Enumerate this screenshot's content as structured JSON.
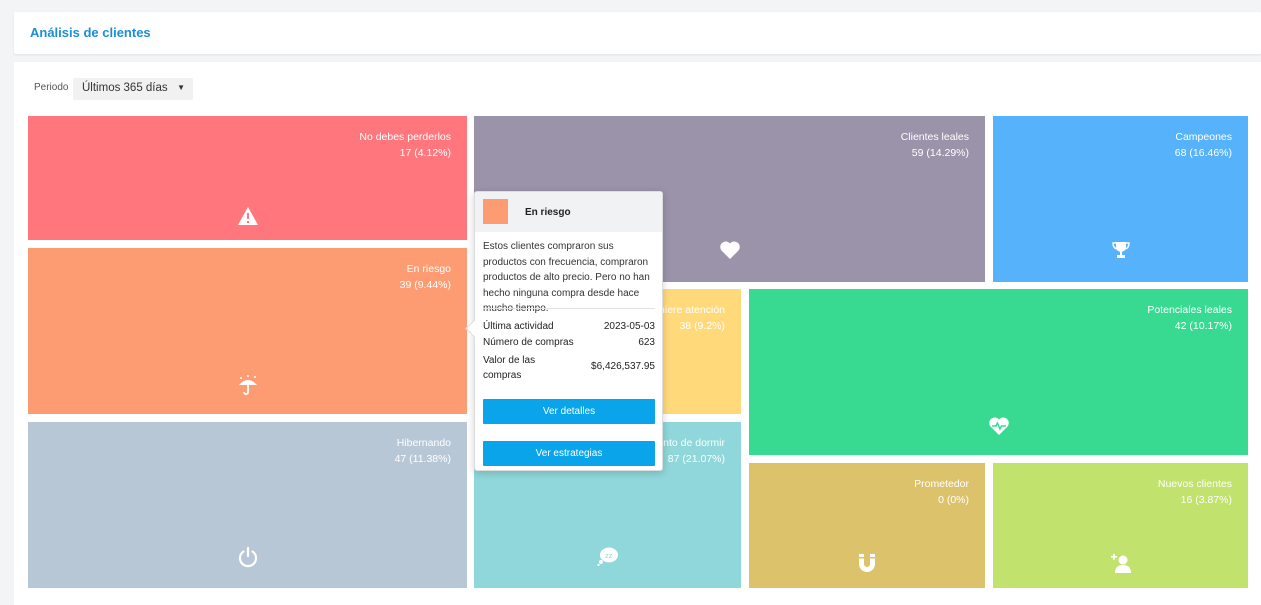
{
  "header": {
    "title": "Análisis de clientes"
  },
  "filter": {
    "label": "Periodo",
    "value": "Últimos 365 días"
  },
  "segments": {
    "no_debes_perderlos": {
      "name": "No debes perderlos",
      "value": "17 (4.12%)",
      "color": "#ff767d",
      "icon": "warning-icon"
    },
    "en_riesgo": {
      "name": "En riesgo",
      "value": "39 (9.44%)",
      "color": "#fd9c72",
      "icon": "umbrella-rain-icon"
    },
    "hibernando": {
      "name": "Hibernando",
      "value": "47 (11.38%)",
      "color": "#b8c7d6",
      "icon": "power-icon"
    },
    "clientes_leales": {
      "name": "Clientes leales",
      "value": "59 (14.29%)",
      "color": "#9b93a9",
      "icon": "heart-icon"
    },
    "campeones": {
      "name": "Campeones",
      "value": "68 (16.46%)",
      "color": "#55b2fb",
      "icon": "trophy-icon"
    },
    "requiere_atencion": {
      "name": "uiere atención",
      "value": "38 (9.2%)",
      "color": "#ffd97a",
      "icon": ""
    },
    "a_punto_de_dormir": {
      "name": "nto de dormir",
      "value": "87 (21.07%)",
      "color": "#8fd7da",
      "icon": "sleep-bubble-icon"
    },
    "potenciales_leales": {
      "name": "Potenciales leales",
      "value": "42 (10.17%)",
      "color": "#38da92",
      "icon": "heart-pulse-icon"
    },
    "prometedor": {
      "name": "Prometedor",
      "value": "0 (0%)",
      "color": "#dcc36b",
      "icon": "magnet-icon"
    },
    "nuevos_clientes": {
      "name": "Nuevos clientes",
      "value": "16 (3.87%)",
      "color": "#c1e26c",
      "icon": "add-user-icon"
    }
  },
  "tooltip": {
    "title": "En riesgo",
    "swatch_color": "#fd9c72",
    "description": "Estos clientes compraron sus productos con frecuencia, compraron productos de alto precio. Pero no han hecho ninguna compra desde hace mucho tiempo.",
    "rows": [
      {
        "label": "Última actividad",
        "value": "2023-05-03"
      },
      {
        "label": "Número de compras",
        "value": "623"
      },
      {
        "label": "Valor de las compras",
        "value": "$6,426,537.95"
      }
    ],
    "btn_details": "Ver detalles",
    "btn_strategies": "Ver estrategias"
  }
}
